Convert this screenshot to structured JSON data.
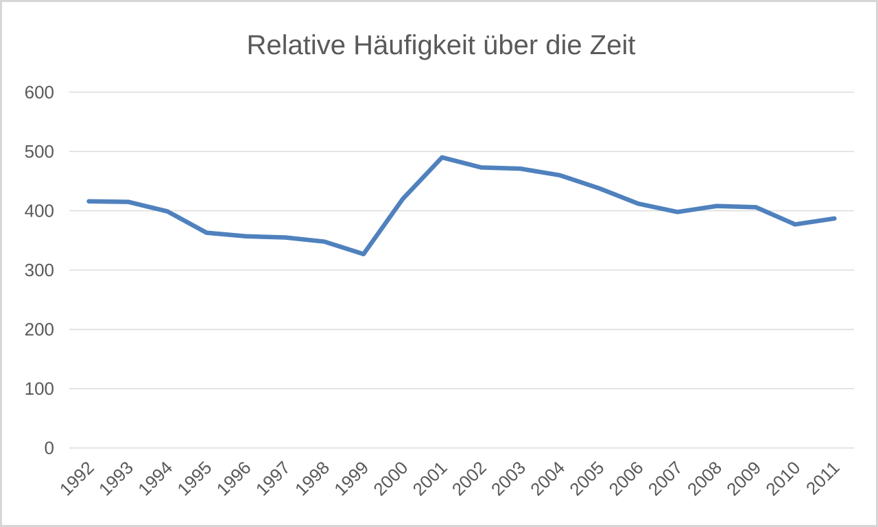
{
  "chart_data": {
    "type": "line",
    "title": "Relative Häufigkeit über die Zeit",
    "xlabel": "",
    "ylabel": "",
    "categories": [
      "1992",
      "1993",
      "1994",
      "1995",
      "1996",
      "1997",
      "1998",
      "1999",
      "2000",
      "2001",
      "2002",
      "2003",
      "2004",
      "2005",
      "2006",
      "2007",
      "2008",
      "2009",
      "2010",
      "2011"
    ],
    "values": [
      416,
      415,
      399,
      363,
      357,
      355,
      348,
      327,
      420,
      490,
      473,
      471,
      460,
      438,
      412,
      398,
      408,
      406,
      377,
      387
    ],
    "ylim": [
      0,
      600
    ],
    "yticks": [
      0,
      100,
      200,
      300,
      400,
      500,
      600
    ],
    "grid": true,
    "legend": false,
    "x_tick_rotation_deg": -45,
    "colors": {
      "line": "#4F81BD",
      "grid": "#D9D9D9",
      "text": "#595959",
      "frame_border": "#D6D6D6",
      "background": "#FFFFFF"
    }
  }
}
